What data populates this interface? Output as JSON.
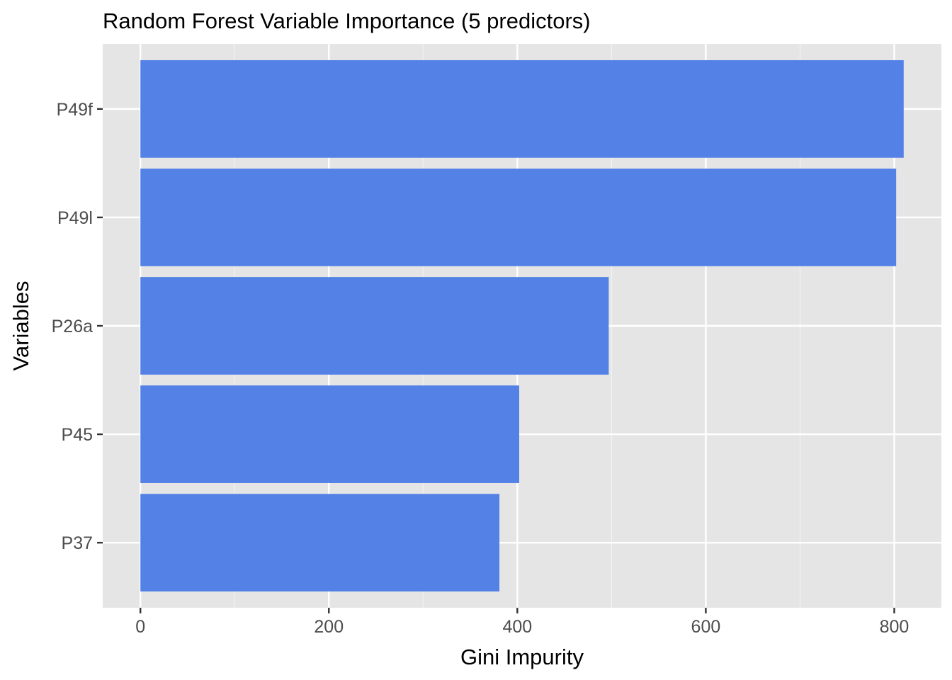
{
  "chart_data": {
    "type": "bar",
    "orientation": "horizontal",
    "title": "Random Forest Variable Importance (5 predictors)",
    "xlabel": "Gini Impurity",
    "ylabel": "Variables",
    "categories": [
      "P49f",
      "P49l",
      "P26a",
      "P45",
      "P37"
    ],
    "values": [
      810,
      802,
      497,
      402,
      381
    ],
    "xlim": [
      -40,
      850
    ],
    "x_ticks": [
      0,
      200,
      400,
      600,
      800
    ],
    "x_tick_labels": [
      "0",
      "200",
      "400",
      "600",
      "800"
    ],
    "grid": true,
    "legend": "none",
    "colors": {
      "bar": "#5481E6",
      "panel_background": "#E5E5E5",
      "grid_major": "#FFFFFF",
      "grid_minor": "#F2F2F2",
      "tick_text": "#4D4D4D",
      "axis_ticks": "#333333"
    }
  }
}
